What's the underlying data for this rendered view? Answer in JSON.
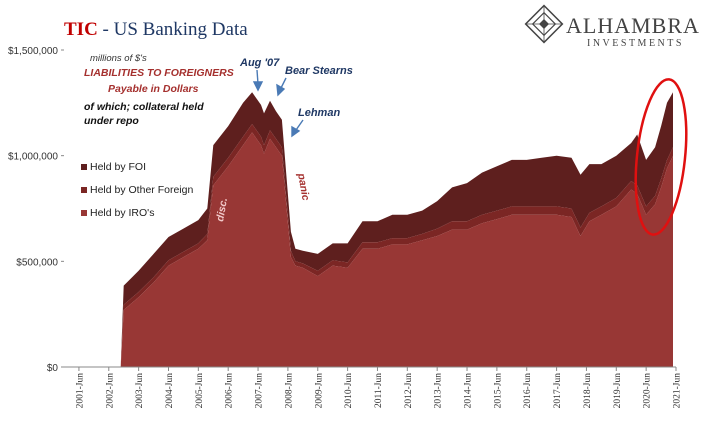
{
  "header": {
    "title_highlight": "TIC",
    "title_rest": " - US Banking Data",
    "logo_name": "ALHAMBRA",
    "logo_sub": "INVESTMENTS"
  },
  "annotations": {
    "units": "millions of $'s",
    "heading_line1": "LIABILITIES TO FOREIGNERS",
    "heading_line2": "Payable in Dollars",
    "sub_line1": "of which; collateral held",
    "sub_line2": "under repo",
    "event_aug07": "Aug '07",
    "event_bear": "Bear Stearns",
    "event_lehman": "Lehman",
    "label_disc": "disc.",
    "label_panic": "panic"
  },
  "colors": {
    "foi": "#5e1f1e",
    "other_foreign": "#7b2624",
    "iro": "#983735",
    "highlight_circle": "#e01010",
    "arrow": "#4a7ab5",
    "axis_text": "#333333"
  },
  "chart_data": {
    "type": "area",
    "stacked": true,
    "ylim": [
      0,
      1500000
    ],
    "yticks": [
      0,
      500000,
      1000000,
      1500000
    ],
    "ytick_labels": [
      "$0",
      "$500,000",
      "$1,000,000",
      "$1,500,000"
    ],
    "xtick_labels": [
      "2001-Jun",
      "2002-Jun",
      "2003-Jun",
      "2004-Jun",
      "2005-Jun",
      "2006-Jun",
      "2007-Jun",
      "2008-Jun",
      "2009-Jun",
      "2010-Jun",
      "2011-Jun",
      "2012-Jun",
      "2013-Jun",
      "2014-Jun",
      "2015-Jun",
      "2016-Jun",
      "2017-Jun",
      "2018-Jun",
      "2019-Jun",
      "2020-Jun",
      "2021-Jun"
    ],
    "x": [
      2002.9,
      2003.0,
      2003.5,
      2004.0,
      2004.5,
      2005.0,
      2005.5,
      2005.8,
      2006.0,
      2006.5,
      2007.0,
      2007.3,
      2007.6,
      2007.7,
      2007.9,
      2008.1,
      2008.3,
      2008.6,
      2008.75,
      2009.0,
      2009.5,
      2010.0,
      2010.5,
      2011.0,
      2011.5,
      2012.0,
      2012.5,
      2013.0,
      2013.5,
      2014.0,
      2014.5,
      2015.0,
      2015.5,
      2016.0,
      2016.5,
      2017.0,
      2017.5,
      2018.0,
      2018.3,
      2018.6,
      2019.0,
      2019.5,
      2020.0,
      2020.2,
      2020.5,
      2020.8,
      2021.0,
      2021.2,
      2021.4
    ],
    "series": [
      {
        "name": "Held by FOI",
        "values": [
          0,
          90000,
          100000,
          110000,
          110000,
          110000,
          110000,
          120000,
          150000,
          150000,
          160000,
          150000,
          150000,
          150000,
          140000,
          130000,
          130000,
          90000,
          60000,
          60000,
          80000,
          80000,
          90000,
          100000,
          100000,
          110000,
          110000,
          110000,
          130000,
          160000,
          180000,
          200000,
          210000,
          220000,
          220000,
          230000,
          240000,
          240000,
          250000,
          230000,
          200000,
          200000,
          180000,
          240000,
          220000,
          230000,
          250000,
          270000,
          260000
        ]
      },
      {
        "name": "Held by Other Foreign",
        "values": [
          0,
          25000,
          25000,
          25000,
          25000,
          25000,
          25000,
          30000,
          40000,
          40000,
          40000,
          40000,
          40000,
          40000,
          40000,
          40000,
          40000,
          30000,
          20000,
          20000,
          25000,
          25000,
          25000,
          30000,
          30000,
          30000,
          30000,
          30000,
          35000,
          40000,
          40000,
          40000,
          40000,
          40000,
          40000,
          40000,
          40000,
          40000,
          40000,
          40000,
          40000,
          40000,
          40000,
          40000,
          40000,
          40000,
          40000,
          40000,
          40000
        ]
      },
      {
        "name": "Held by IRO's",
        "values": [
          0,
          270000,
          330000,
          400000,
          480000,
          520000,
          560000,
          600000,
          860000,
          950000,
          1050000,
          1110000,
          1050000,
          1010000,
          1080000,
          1040000,
          1000000,
          520000,
          480000,
          470000,
          430000,
          480000,
          470000,
          560000,
          560000,
          580000,
          580000,
          600000,
          620000,
          650000,
          650000,
          680000,
          700000,
          720000,
          720000,
          720000,
          720000,
          710000,
          620000,
          690000,
          720000,
          760000,
          840000,
          820000,
          720000,
          770000,
          850000,
          940000,
          1000000
        ]
      }
    ]
  }
}
